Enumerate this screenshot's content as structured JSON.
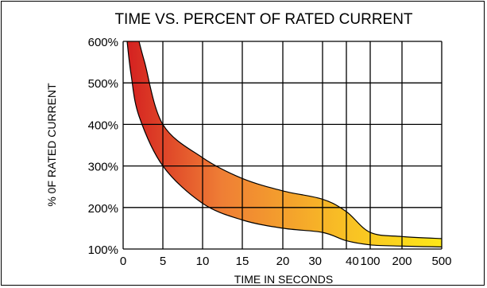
{
  "chart_data": {
    "type": "area",
    "title": "TIME VS. PERCENT OF RATED CURRENT",
    "xlabel": "TIME IN SECONDS",
    "ylabel": "% 0F RATED CURRENT",
    "x_ticks": [
      "0",
      "5",
      "10",
      "15",
      "20",
      "30",
      "40",
      "100",
      "200",
      "500"
    ],
    "y_ticks": [
      "600%",
      "500%",
      "400%",
      "300%",
      "200%",
      "100%"
    ],
    "ylim": [
      100,
      600
    ],
    "grid": true,
    "series": [
      {
        "role": "upper",
        "x": [
          "2.0",
          "2.7",
          "5",
          "10",
          "15",
          "20",
          "30",
          "40",
          "100",
          "200",
          "500"
        ],
        "y": [
          600,
          550,
          400,
          320,
          270,
          240,
          220,
          190,
          140,
          130,
          125
        ]
      },
      {
        "role": "lower",
        "x": [
          "0.5",
          "1.0",
          "2.0",
          "5",
          "10",
          "15",
          "20",
          "30",
          "40",
          "100",
          "200",
          "500"
        ],
        "y": [
          600,
          520,
          420,
          300,
          210,
          170,
          150,
          140,
          120,
          110,
          107,
          105
        ]
      }
    ],
    "gradient_colors": [
      "#d42020",
      "#ef7e35",
      "#f8be25",
      "#fde818"
    ]
  }
}
